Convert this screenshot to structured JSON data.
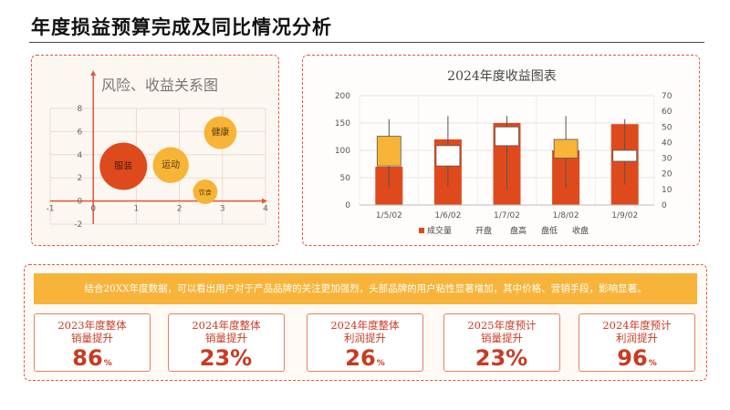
{
  "page": {
    "title": "年度损益预算完成及同比情况分析"
  },
  "chart_data": [
    {
      "type": "bubble",
      "title": "风险、收益关系图",
      "xlim": [
        -1,
        4
      ],
      "ylim": [
        -2,
        8
      ],
      "x_ticks": [
        "-1",
        "0",
        "1",
        "2",
        "3",
        "4"
      ],
      "y_ticks": [
        "-2",
        "0",
        "2",
        "4",
        "6",
        "8"
      ],
      "points": [
        {
          "label": "服装",
          "x": 0.7,
          "y": 3.0,
          "size": 1.0,
          "color": "#df4a1c"
        },
        {
          "label": "运动",
          "x": 1.8,
          "y": 3.1,
          "size": 0.65,
          "color": "#f7b437"
        },
        {
          "label": "健康",
          "x": 2.95,
          "y": 5.9,
          "size": 0.55,
          "color": "#f7b437"
        },
        {
          "label": "饮食",
          "x": 2.6,
          "y": 0.8,
          "size": 0.3,
          "color": "#f7b437"
        }
      ],
      "axis_color": "#e0573a",
      "grid": true
    },
    {
      "type": "stock",
      "title": "2024年度收益图表",
      "categories": [
        "1/5/02",
        "1/6/02",
        "1/7/02",
        "1/8/02",
        "1/9/02"
      ],
      "volume_axis": {
        "ticks": [
          "0",
          "50",
          "100",
          "150",
          "200"
        ],
        "lim": [
          0,
          200
        ]
      },
      "price_axis": {
        "ticks": [
          "0",
          "10",
          "20",
          "30",
          "40",
          "50",
          "60",
          "70"
        ],
        "lim": [
          0,
          70
        ]
      },
      "volume": [
        70,
        120,
        150,
        100,
        148
      ],
      "open": [
        44,
        25,
        38,
        42,
        28
      ],
      "high": [
        55,
        57,
        57,
        57,
        55
      ],
      "low": [
        11,
        12,
        10,
        11,
        13
      ],
      "close": [
        25,
        38,
        50,
        30,
        35
      ],
      "legend": [
        "成交量",
        "开盘",
        "盘高",
        "盘低",
        "收盘"
      ],
      "legend_position": "bottom",
      "colors": {
        "volume": "#df4a1c",
        "down": "#f7b437",
        "up": "#ffffff",
        "wick": "#555555"
      },
      "grid": true
    }
  ],
  "summary": {
    "banner": "结合20XX年度数据，可以看出用户对于产品品牌的关注更加强烈，头部品牌的用户粘性显著增加，其中价格、营销手段，影响显著。",
    "stats": [
      {
        "line1": "2023年度整体",
        "line2": "销量提升",
        "value": "86",
        "unit": "%"
      },
      {
        "line1": "2024年度整体",
        "line2": "销量提升",
        "value": "23%",
        "unit": ""
      },
      {
        "line1": "2024年度整体",
        "line2": "利润提升",
        "value": "26",
        "unit": "%"
      },
      {
        "line1": "2025年度预计",
        "line2": "销量提升",
        "value": "23%",
        "unit": ""
      },
      {
        "line1": "2024年度预计",
        "line2": "利润提升",
        "value": "96",
        "unit": "%"
      }
    ]
  }
}
